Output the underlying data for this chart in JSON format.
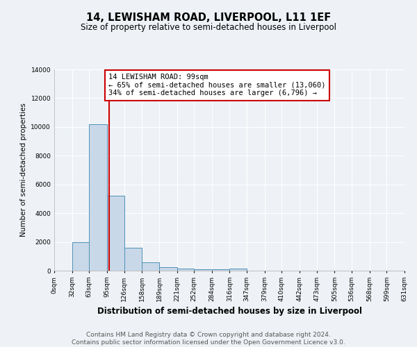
{
  "title": "14, LEWISHAM ROAD, LIVERPOOL, L11 1EF",
  "subtitle": "Size of property relative to semi-detached houses in Liverpool",
  "xlabel": "Distribution of semi-detached houses by size in Liverpool",
  "ylabel": "Number of semi-detached properties",
  "bin_edges": [
    0,
    32,
    63,
    95,
    126,
    158,
    189,
    221,
    252,
    284,
    316,
    347,
    379,
    410,
    442,
    473,
    505,
    536,
    568,
    599,
    631
  ],
  "bar_heights": [
    0,
    2000,
    10200,
    5200,
    1600,
    600,
    250,
    150,
    100,
    100,
    150,
    0,
    0,
    0,
    0,
    0,
    0,
    0,
    0,
    0
  ],
  "bar_color": "#c8d8e8",
  "bar_edge_color": "#5090b8",
  "vline_x": 99,
  "vline_color": "#cc0000",
  "annotation_text_line1": "14 LEWISHAM ROAD: 99sqm",
  "annotation_text_line2": "← 65% of semi-detached houses are smaller (13,060)",
  "annotation_text_line3": "34% of semi-detached houses are larger (6,796) →",
  "annotation_box_color": "#ffffff",
  "annotation_box_edge": "#cc0000",
  "ylim": [
    0,
    14000
  ],
  "yticks": [
    0,
    2000,
    4000,
    6000,
    8000,
    10000,
    12000,
    14000
  ],
  "footer_line1": "Contains HM Land Registry data © Crown copyright and database right 2024.",
  "footer_line2": "Contains public sector information licensed under the Open Government Licence v3.0.",
  "bg_color": "#eef2f6",
  "plot_bg_color": "#eef2f6",
  "grid_color": "#ffffff",
  "title_fontsize": 10.5,
  "subtitle_fontsize": 8.5,
  "xlabel_fontsize": 8.5,
  "ylabel_fontsize": 7.5,
  "tick_fontsize": 6.5,
  "footer_fontsize": 6.5,
  "annotation_fontsize": 7.5
}
